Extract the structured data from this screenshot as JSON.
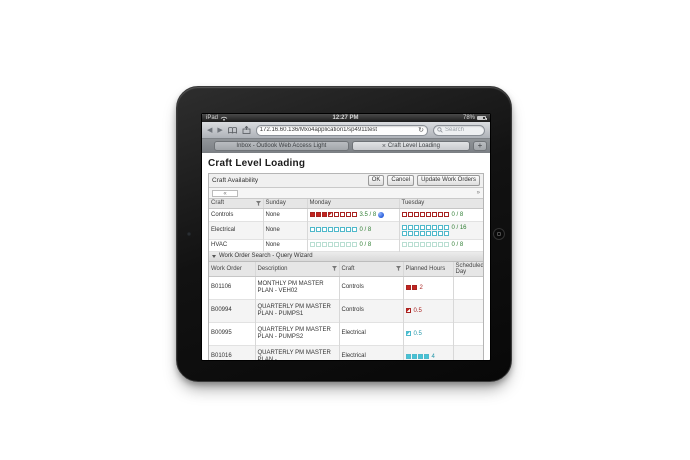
{
  "device": {
    "name": "iPad",
    "time": "12:27 PM",
    "battery": "78%"
  },
  "browser": {
    "back": "◀",
    "forward": "▶",
    "refresh": "↻",
    "url": "172.16.60.136/Mxo4application1/sp4911test",
    "search_placeholder": "Search",
    "tabs": [
      {
        "label": "Inbox - Outlook Web Access Light"
      },
      {
        "label": "Craft Level Loading",
        "close": "×"
      }
    ],
    "new_tab": "+"
  },
  "page": {
    "title": "Craft Level Loading",
    "toolbar": {
      "label": "Craft Availability",
      "ok": "OK",
      "cancel": "Cancel",
      "update": "Update Work Orders"
    },
    "pager": {
      "prev": "«",
      "next": "»"
    },
    "availability": {
      "columns": [
        "Craft",
        "Sunday",
        "Monday",
        "Tuesday"
      ],
      "rows": [
        {
          "craft": "Controls",
          "sunday": "None",
          "monday": {
            "filled": 3,
            "half": 1,
            "total": 8,
            "color": "red",
            "label": "3.5 / 8",
            "info": true
          },
          "tuesday": {
            "filled": 0,
            "half": 0,
            "total": 8,
            "color": "red",
            "label": "0 / 8"
          }
        },
        {
          "craft": "Electrical",
          "sunday": "None",
          "monday": {
            "filled": 0,
            "half": 0,
            "total": 8,
            "color": "cyan",
            "label": "0 / 8"
          },
          "tuesday": {
            "filled": 0,
            "half": 0,
            "total": 16,
            "color": "cyan",
            "label": "0 / 16",
            "wrap": 8
          }
        },
        {
          "craft": "HVAC",
          "sunday": "None",
          "monday": {
            "filled": 0,
            "half": 0,
            "total": 8,
            "color": "teal",
            "label": "0 / 8"
          },
          "tuesday": {
            "filled": 0,
            "half": 0,
            "total": 8,
            "color": "teal",
            "label": "0 / 8"
          }
        }
      ]
    },
    "wo_section": {
      "label": "Work Order Search - Query Wizard"
    },
    "wo_table": {
      "columns": [
        "Work Order",
        "Description",
        "Craft",
        "Planned Hours",
        "Scheduled Day"
      ],
      "rows": [
        {
          "wo": "B01106",
          "desc": "MONTHLY PM MASTER PLAN - VEH02",
          "craft": "Controls",
          "hours": {
            "filled": 2,
            "half": 0,
            "total": 2,
            "color": "red",
            "label": "2"
          },
          "scheduled": ""
        },
        {
          "wo": "B00994",
          "desc": "QUARTERLY PM MASTER PLAN - PUMPS1",
          "craft": "Controls",
          "hours": {
            "filled": 0,
            "half": 1,
            "total": 1,
            "color": "red",
            "label": "0.5"
          },
          "scheduled": ""
        },
        {
          "wo": "B00995",
          "desc": "QUARTERLY PM MASTER PLAN - PUMPS2",
          "craft": "Electrical",
          "hours": {
            "filled": 0,
            "half": 1,
            "total": 1,
            "color": "cyan",
            "label": "0.5"
          },
          "scheduled": ""
        },
        {
          "wo": "B01016",
          "desc": "QUARTERLY PM MASTER PLAN -",
          "craft": "Electrical",
          "hours": {
            "filled": 4,
            "half": 0,
            "total": 4,
            "color": "cyan",
            "label": "4"
          },
          "scheduled": ""
        }
      ]
    }
  },
  "colors": {
    "red": {
      "border": "#a82321",
      "fill": "#c3251f",
      "label": "#a82321"
    },
    "cyan": {
      "border": "#4fb9cb",
      "fill": "#45c3d6",
      "label": "#2496a8"
    },
    "teal": {
      "border": "#b9ded2",
      "fill": "#b9ded2",
      "label": "#2e7d32"
    },
    "green_label": "#2e7d32",
    "info": "#2b5fd9"
  }
}
